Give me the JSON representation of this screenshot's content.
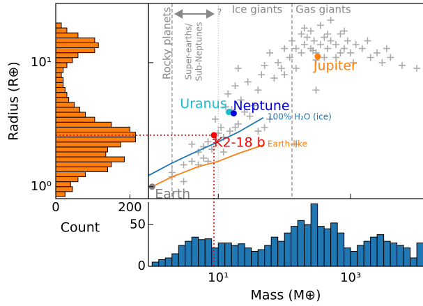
{
  "chart_data": [
    {
      "type": "scatter",
      "x": [
        2,
        3,
        4,
        5,
        6,
        7,
        8,
        9,
        6,
        5,
        10,
        12,
        11,
        15,
        20,
        9,
        13,
        16,
        14,
        18,
        22,
        25,
        30,
        35,
        28,
        40,
        45,
        50,
        60,
        70,
        80,
        90,
        100,
        120,
        150,
        180,
        200,
        220,
        250,
        280,
        300,
        350,
        400,
        450,
        500,
        600,
        700,
        800,
        900,
        1000,
        1200,
        1500,
        2000,
        2500,
        3000,
        4000,
        6000,
        10000,
        250,
        350,
        500,
        150,
        600,
        180,
        130,
        1800,
        800,
        400,
        1100,
        270,
        450,
        300,
        200,
        700,
        3500,
        100,
        2,
        3,
        4,
        7,
        12,
        18,
        40,
        60,
        150,
        300,
        20,
        50
      ],
      "y": [
        1.2,
        1.5,
        1.6,
        1.9,
        2.1,
        2.3,
        2.0,
        2.4,
        1.7,
        1.5,
        2.7,
        2.5,
        3.0,
        2.8,
        3.2,
        3.5,
        4.4,
        4.2,
        5.6,
        6.5,
        5.0,
        4.0,
        3.7,
        4.5,
        7.0,
        6.0,
        8.0,
        9.5,
        12,
        7.5,
        10,
        9.0,
        8.0,
        11,
        13,
        12,
        14,
        16,
        13,
        15,
        12,
        14,
        16,
        13,
        15,
        14,
        17,
        13,
        15,
        12,
        14,
        13,
        11,
        12,
        10,
        11,
        9.5,
        9,
        18,
        20,
        22,
        9,
        11,
        17,
        15,
        15,
        18,
        11,
        10,
        12.5,
        17,
        10.5,
        19,
        12,
        13,
        13,
        1.3,
        1.1,
        2.2,
        1.6,
        1.9,
        3.0,
        2.8,
        3.5,
        2.2,
        6,
        9,
        3.0
      ],
      "color": "#aaaaaa",
      "log_x": true,
      "log_y": true,
      "xlim": [
        0.88,
        12400
      ],
      "ylim": [
        0.8,
        30
      ],
      "dashed_lines": [
        2,
        130
      ],
      "dotted_lines": [
        10
      ],
      "regions": [
        "Rocky planets",
        "Super-earths/",
        "Sub-Neptunes",
        "?",
        "Ice giants",
        "Gas giants"
      ],
      "series": [
        {
          "name": "100% H₂O (ice)",
          "color": "#1f77b4",
          "x": [
            0.88,
            2,
            5,
            10,
            20,
            48
          ],
          "y": [
            1.23,
            1.55,
            1.95,
            2.3,
            2.75,
            3.6
          ]
        },
        {
          "name": "Earth-like",
          "color": "#ff7f0e",
          "x": [
            1,
            2,
            5,
            10,
            20,
            48
          ],
          "y": [
            1,
            1.2,
            1.45,
            1.6,
            1.85,
            2.17
          ]
        }
      ],
      "planets": [
        {
          "name": "Earth",
          "mass": 1,
          "radius": 1,
          "color": "#808080"
        },
        {
          "name": "Uranus",
          "mass": 14.5,
          "radius": 4.0,
          "color": "#17becf"
        },
        {
          "name": "Neptune",
          "mass": 17.1,
          "radius": 3.9,
          "color": "#0000dd"
        },
        {
          "name": "Jupiter",
          "mass": 318,
          "radius": 11.2,
          "color": "#ff7f0e"
        },
        {
          "name": "K2-18 b",
          "mass": 8.6,
          "radius": 2.6,
          "color": "#ff0000"
        }
      ]
    },
    {
      "type": "histogram",
      "orientation": "horizontal",
      "bins": [
        0.832,
        0.912,
        1,
        1.096,
        1.202,
        1.318,
        1.445,
        1.585,
        1.738,
        1.905,
        2.089,
        2.291,
        2.512,
        2.754,
        3.02,
        3.311,
        3.631,
        3.981,
        4.365,
        4.786,
        5.248,
        5.754,
        6.31,
        6.918,
        7.586,
        8.318,
        9.12,
        10,
        10.965,
        12.023,
        13.183,
        14.454,
        15.849,
        17.378,
        19.055,
        20.893
      ],
      "counts": [
        25,
        45,
        40,
        60,
        80,
        140,
        150,
        185,
        135,
        140,
        175,
        215,
        215,
        200,
        150,
        105,
        80,
        65,
        50,
        35,
        30,
        25,
        20,
        20,
        15,
        20,
        30,
        45,
        60,
        105,
        115,
        105,
        60,
        30,
        15
      ],
      "color": "#ff7f0e",
      "xlim": [
        0,
        250
      ],
      "xticks": [
        0,
        200
      ],
      "ylim": [
        0.8,
        30
      ],
      "yticks": [
        {
          "value": 1,
          "label": "10⁰"
        },
        {
          "value": 10,
          "label": "10¹"
        }
      ],
      "xlabel": "Count",
      "ylabel": "Radius (R⊕)"
    },
    {
      "type": "histogram",
      "orientation": "vertical",
      "bins": [
        1,
        1.259,
        1.585,
        1.995,
        2.512,
        3.162,
        3.981,
        5.012,
        6.31,
        7.943,
        10,
        12.59,
        15.85,
        19.95,
        25.12,
        31.62,
        39.81,
        50.12,
        63.1,
        79.43,
        100,
        125.9,
        158.5,
        199.5,
        251.2,
        316.2,
        398.1,
        501.2,
        631.0,
        794.3,
        1000,
        1259,
        1585,
        1995,
        2512,
        3162,
        3981,
        5012,
        6310,
        7943,
        10000,
        12589
      ],
      "counts": [
        5,
        8,
        10,
        15,
        25,
        30,
        35,
        32,
        33,
        22,
        28,
        28,
        25,
        27,
        22,
        18,
        20,
        25,
        35,
        30,
        40,
        48,
        55,
        50,
        75,
        48,
        45,
        52,
        40,
        22,
        18,
        25,
        30,
        35,
        38,
        30,
        28,
        25,
        22,
        10,
        28
      ],
      "color": "#1f77b4",
      "xlim": [
        0.88,
        12400
      ],
      "xticks": [
        {
          "value": 10,
          "label": "10¹"
        },
        {
          "value": 1000,
          "label": "10³"
        }
      ],
      "ylim": [
        0,
        77
      ],
      "yticks": [
        0,
        50
      ],
      "xlabel": "Mass (M⊕)"
    }
  ]
}
